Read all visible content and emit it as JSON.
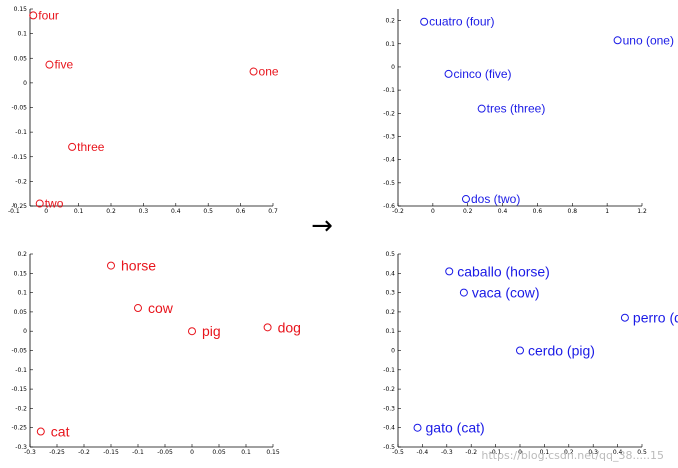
{
  "arrow": "→",
  "watermark": "https://blog.csdn.net/qq_38.....15",
  "chart_data": [
    {
      "type": "scatter",
      "color": "#e8141c",
      "xlim": [
        -0.05,
        0.7
      ],
      "ylim": [
        -0.25,
        0.15
      ],
      "xticks": [
        "-0.1",
        "0",
        "0.1",
        "0.2",
        "0.3",
        "0.4",
        "0.5",
        "0.6",
        "0.7"
      ],
      "xtick_values": [
        -0.1,
        0,
        0.1,
        0.2,
        0.3,
        0.4,
        0.5,
        0.6,
        0.7
      ],
      "yticks": [
        "-0.25",
        "-0.2",
        "-0.15",
        "-0.1",
        "-0.05",
        "0",
        "0.05",
        "0.1",
        "0.15"
      ],
      "ytick_values": [
        -0.25,
        -0.2,
        -0.15,
        -0.1,
        -0.05,
        0,
        0.05,
        0.1,
        0.15
      ],
      "points": [
        {
          "label": "four",
          "x": -0.04,
          "y": 0.137
        },
        {
          "label": "five",
          "x": 0.01,
          "y": 0.037
        },
        {
          "label": "one",
          "x": 0.64,
          "y": 0.023
        },
        {
          "label": "three",
          "x": 0.08,
          "y": -0.13
        },
        {
          "label": "two",
          "x": -0.02,
          "y": -0.245
        }
      ]
    },
    {
      "type": "scatter",
      "color": "#1a1ae6",
      "xlim": [
        -0.2,
        1.2
      ],
      "ylim": [
        -0.6,
        0.25
      ],
      "xticks": [
        "-0.2",
        "0",
        "0.2",
        "0.4",
        "0.6",
        "0.8",
        "1",
        "1.2"
      ],
      "xtick_values": [
        -0.2,
        0,
        0.2,
        0.4,
        0.6,
        0.8,
        1,
        1.2
      ],
      "yticks": [
        "-0.6",
        "-0.5",
        "-0.4",
        "-0.3",
        "-0.2",
        "-0.1",
        "0",
        "0.1",
        "0.2"
      ],
      "ytick_values": [
        -0.6,
        -0.5,
        -0.4,
        -0.3,
        -0.2,
        -0.1,
        0,
        0.1,
        0.2
      ],
      "points": [
        {
          "label": "cuatro (four)",
          "x": -0.05,
          "y": 0.195
        },
        {
          "label": "uno (one)",
          "x": 1.06,
          "y": 0.115
        },
        {
          "label": "cinco (five)",
          "x": 0.09,
          "y": -0.03
        },
        {
          "label": "tres (three)",
          "x": 0.28,
          "y": -0.18
        },
        {
          "label": "dos (two)",
          "x": 0.19,
          "y": -0.57
        }
      ]
    },
    {
      "type": "scatter",
      "color": "#e8141c",
      "xlim": [
        -0.3,
        0.15
      ],
      "ylim": [
        -0.3,
        0.2
      ],
      "xticks": [
        "-0.3",
        "-0.25",
        "-0.2",
        "-0.15",
        "-0.1",
        "-0.05",
        "0",
        "0.05",
        "0.1",
        "0.15"
      ],
      "xtick_values": [
        -0.3,
        -0.25,
        -0.2,
        -0.15,
        -0.1,
        -0.05,
        0,
        0.05,
        0.1,
        0.15
      ],
      "yticks": [
        "-0.3",
        "-0.25",
        "-0.2",
        "-0.15",
        "-0.1",
        "-0.05",
        "0",
        "0.05",
        "0.1",
        "0.15",
        "0.2"
      ],
      "ytick_values": [
        -0.3,
        -0.25,
        -0.2,
        -0.15,
        -0.1,
        -0.05,
        0,
        0.05,
        0.1,
        0.15,
        0.2
      ],
      "points": [
        {
          "label": "horse",
          "x": -0.15,
          "y": 0.17
        },
        {
          "label": "cow",
          "x": -0.1,
          "y": 0.06
        },
        {
          "label": "pig",
          "x": 0.0,
          "y": 0.0
        },
        {
          "label": "dog",
          "x": 0.14,
          "y": 0.01
        },
        {
          "label": "cat",
          "x": -0.28,
          "y": -0.26
        }
      ]
    },
    {
      "type": "scatter",
      "color": "#1a1ae6",
      "xlim": [
        -0.5,
        0.5
      ],
      "ylim": [
        -0.5,
        0.5
      ],
      "xticks": [
        "-0.5",
        "-0.4",
        "-0.3",
        "-0.2",
        "-0.1",
        "0",
        "0.1",
        "0.2",
        "0.3",
        "0.4",
        "0.5"
      ],
      "xtick_values": [
        -0.5,
        -0.4,
        -0.3,
        -0.2,
        -0.1,
        0,
        0.1,
        0.2,
        0.3,
        0.4,
        0.5
      ],
      "yticks": [
        "-0.5",
        "-0.4",
        "-0.3",
        "-0.2",
        "-0.1",
        "0",
        "0.1",
        "0.2",
        "0.3",
        "0.4",
        "0.5"
      ],
      "ytick_values": [
        -0.5,
        -0.4,
        -0.3,
        -0.2,
        -0.1,
        0,
        0.1,
        0.2,
        0.3,
        0.4,
        0.5
      ],
      "points": [
        {
          "label": "caballo (horse)",
          "x": -0.29,
          "y": 0.41
        },
        {
          "label": "vaca (cow)",
          "x": -0.23,
          "y": 0.3
        },
        {
          "label": "perro (dog)",
          "x": 0.43,
          "y": 0.17
        },
        {
          "label": "cerdo (pig)",
          "x": 0.0,
          "y": 0.0
        },
        {
          "label": "gato (cat)",
          "x": -0.42,
          "y": -0.4
        }
      ]
    }
  ]
}
